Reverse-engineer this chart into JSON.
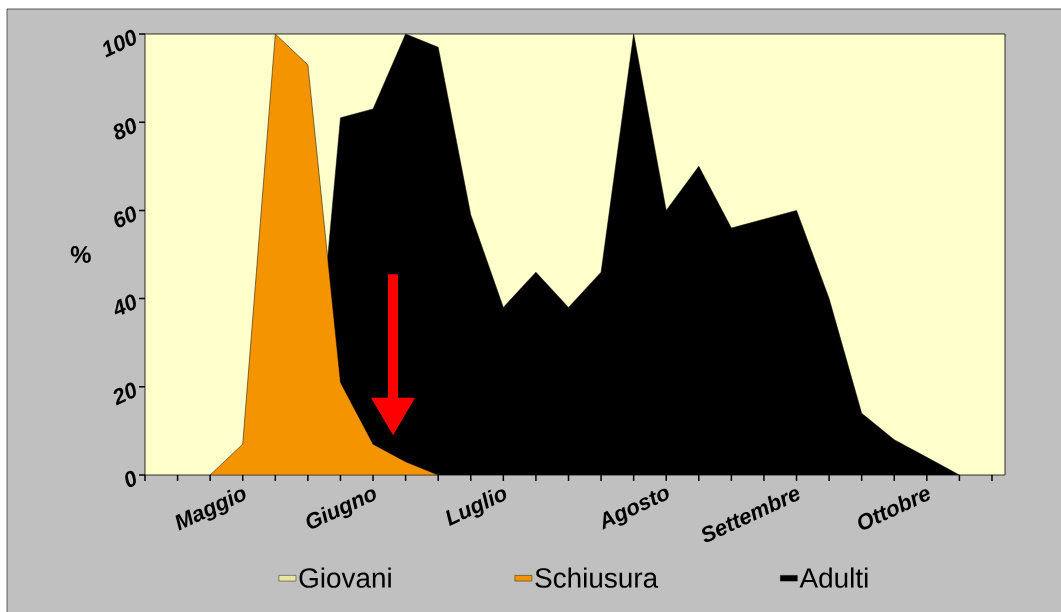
{
  "chart_data": {
    "type": "area",
    "ylabel": "%",
    "ylim": [
      0,
      100
    ],
    "yticks": [
      0,
      20,
      40,
      60,
      80,
      100
    ],
    "categories": [
      null,
      null,
      null,
      "Maggio",
      null,
      null,
      null,
      "Giugno",
      null,
      null,
      null,
      "Luglio",
      null,
      null,
      null,
      null,
      "Agosto",
      null,
      null,
      null,
      "Settembre",
      null,
      null,
      null,
      "Ottobre",
      null,
      null
    ],
    "legend": "bottom",
    "series": [
      {
        "name": "Giovani",
        "color": "#e8e6a0",
        "values": [
          null,
          null,
          null,
          null,
          null,
          null,
          null,
          null,
          null,
          null,
          null,
          null,
          null,
          null,
          null,
          null,
          null,
          null,
          null,
          null,
          null,
          null,
          null,
          null,
          null,
          null,
          null
        ]
      },
      {
        "name": "Schiusura",
        "color": "#f39400",
        "values": [
          null,
          null,
          0,
          7,
          100,
          93,
          21,
          7,
          3,
          0,
          null,
          null,
          null,
          null,
          null,
          null,
          null,
          null,
          null,
          null,
          null,
          null,
          null,
          null,
          null,
          null,
          null
        ]
      },
      {
        "name": "Adulti",
        "color": "#000000",
        "values": [
          null,
          null,
          null,
          null,
          null,
          0,
          81,
          83,
          100,
          97,
          59,
          38,
          46,
          38,
          46,
          100,
          60,
          70,
          56,
          58,
          60,
          40,
          14,
          8,
          4,
          0,
          null
        ]
      }
    ]
  }
}
